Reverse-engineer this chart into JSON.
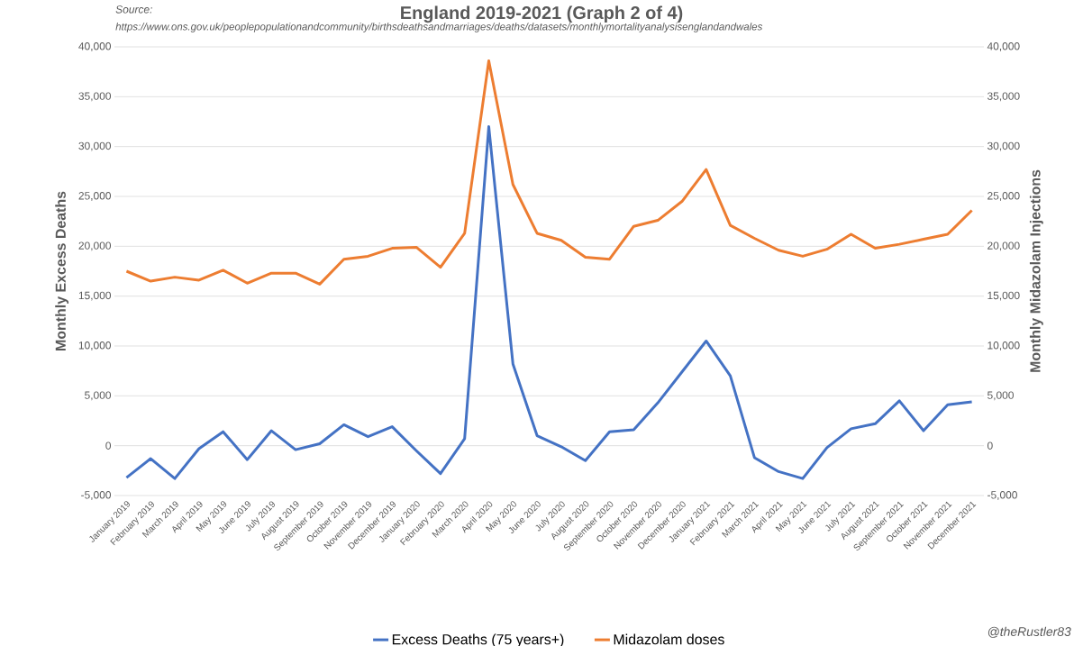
{
  "chart_data": {
    "type": "line",
    "title": "England 2019-2021 (Graph 2 of 4)",
    "annotations": [
      "Source:",
      "https://www.ons.gov.uk/peoplepopulationandcommunity/birthsdeathsandmarriages/deaths/datasets/monthlymortalityanalysisenglandandwales",
      "@theRustler83"
    ],
    "ylabel": "Monthly Excess Deaths",
    "y2label": "Monthly Midazolam Injections",
    "categories": [
      "January 2019",
      "February 2019",
      "March 2019",
      "April 2019",
      "May 2019",
      "June 2019",
      "July 2019",
      "August 2019",
      "September 2019",
      "October 2019",
      "November 2019",
      "December 2019",
      "January 2020",
      "February 2020",
      "March 2020",
      "April 2020",
      "May 2020",
      "June 2020",
      "July 2020",
      "August 2020",
      "September 2020",
      "October 2020",
      "November 2020",
      "December 2020",
      "January 2021",
      "February 2021",
      "March 2021",
      "April 2021",
      "May 2021",
      "June 2021",
      "July 2021",
      "August 2021",
      "September 2021",
      "October 2021",
      "November 2021",
      "December 2021"
    ],
    "series": [
      {
        "name": "Excess Deaths (75 years+)",
        "color": "#4472c4",
        "values": [
          -3200,
          -1300,
          -3300,
          -300,
          1400,
          -1400,
          1500,
          -400,
          200,
          2100,
          900,
          1900,
          -500,
          -2800,
          700,
          32000,
          8200,
          1000,
          -100,
          -1500,
          1400,
          1600,
          4300,
          7400,
          10500,
          7000,
          -1200,
          -2600,
          -3300,
          -200,
          1700,
          2200,
          4500,
          1500,
          4100,
          4400
        ]
      },
      {
        "name": "Midazolam doses",
        "color": "#ed7d31",
        "axis": "y2",
        "values": [
          17500,
          16500,
          16900,
          16600,
          17600,
          16300,
          17300,
          17300,
          16200,
          18700,
          19000,
          19800,
          19900,
          17900,
          21300,
          38600,
          26200,
          21300,
          20600,
          18900,
          18700,
          22000,
          22600,
          24500,
          27700,
          22100,
          20800,
          19600,
          19000,
          19700,
          21200,
          19800,
          20200,
          20700,
          21200,
          23600
        ]
      }
    ],
    "ylim": [
      -5000,
      40000
    ],
    "yticks": [
      {
        "value": -5000,
        "label": "-5,000"
      },
      0,
      {
        "value": 5000,
        "label": "5,000"
      },
      {
        "value": 10000,
        "label": "10,000"
      },
      {
        "value": 15000,
        "label": "15,000"
      },
      {
        "value": 20000,
        "label": "20,000"
      },
      {
        "value": 25000,
        "label": "25,000"
      },
      {
        "value": 30000,
        "label": "30,000"
      },
      {
        "value": 35000,
        "label": "35,000"
      },
      {
        "value": 40000,
        "label": "40,000"
      }
    ],
    "y2lim": [
      -5000,
      40000
    ],
    "y2ticks": [
      {
        "value": -5000,
        "label": "-5,000"
      },
      0,
      {
        "value": 5000,
        "label": "5,000"
      },
      {
        "value": 10000,
        "label": "10,000"
      },
      {
        "value": 15000,
        "label": "15,000"
      },
      {
        "value": 20000,
        "label": "20,000"
      },
      {
        "value": 25000,
        "label": "25,000"
      },
      {
        "value": 30000,
        "label": "30,000"
      },
      {
        "value": 35000,
        "label": "35,000"
      },
      {
        "value": 40000,
        "label": "40,000"
      }
    ],
    "grid": "y",
    "legend": "bottom",
    "marker": "none",
    "line_style": "solid"
  }
}
